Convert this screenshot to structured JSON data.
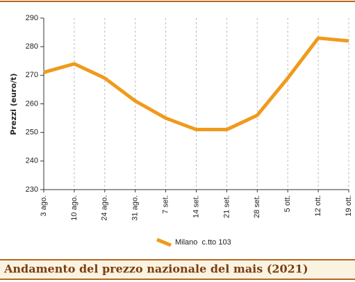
{
  "chart_data": {
    "type": "line",
    "title": "Andamento del prezzo nazionale del mais (2021)",
    "y_label": "Prezzi (euro/t)",
    "categories": [
      "3 ago.",
      "10 ago.",
      "24 ago.",
      "31 ago.",
      "7 set.",
      "14 set.",
      "21 set.",
      "28 set.",
      "5 ott.",
      "12 ott.",
      "19 ott."
    ],
    "series": [
      {
        "name": "Milano  c.tto 103",
        "color": "#f09a1c",
        "values": [
          271,
          274,
          269,
          261,
          255,
          251,
          251,
          256,
          269,
          283,
          282
        ]
      }
    ],
    "ylim": [
      230,
      290
    ],
    "yticks": [
      230,
      240,
      250,
      260,
      270,
      280,
      290
    ],
    "grid": true,
    "legend": "bottom"
  }
}
